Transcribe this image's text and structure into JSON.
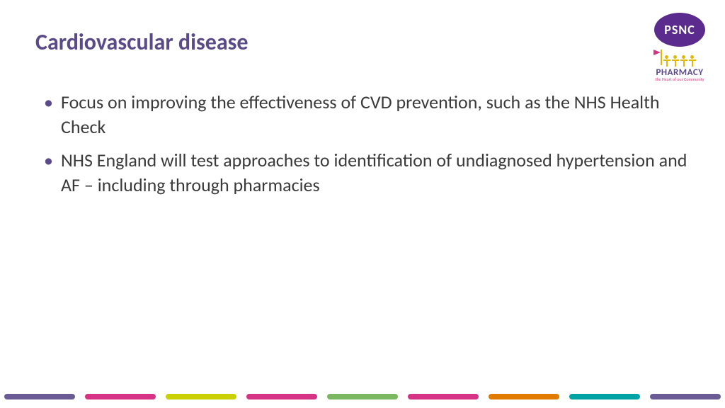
{
  "title": "Cardiovascular disease",
  "bullets": [
    "Focus on improving the effectiveness of CVD prevention, such as the NHS Health Check",
    "NHS England will test approaches to identification of undiagnosed hypertension and AF – including through pharmacies"
  ],
  "logos": {
    "psnc": {
      "text": "PSNC",
      "bg": "#5b2c8e",
      "fg": "#ffffff"
    },
    "pharmacy": {
      "text": "PHARMACY",
      "tagline": "the Heart of our Community",
      "text_color": "#5b4a8a",
      "tag_color": "#d63384",
      "figure_color": "#e3b800"
    }
  },
  "color_bar": {
    "segments": [
      "#6b5b95",
      "#d63384",
      "#c9d100",
      "#d63384",
      "#7bb661",
      "#d63384",
      "#e07b00",
      "#00a3a3",
      "#6b5b95"
    ]
  },
  "title_color": "#5b4a8a",
  "body_color": "#3a3a3a",
  "bullet_marker_color": "#5b4a8a",
  "background": "#ffffff",
  "title_fontsize": 32,
  "body_fontsize": 26
}
